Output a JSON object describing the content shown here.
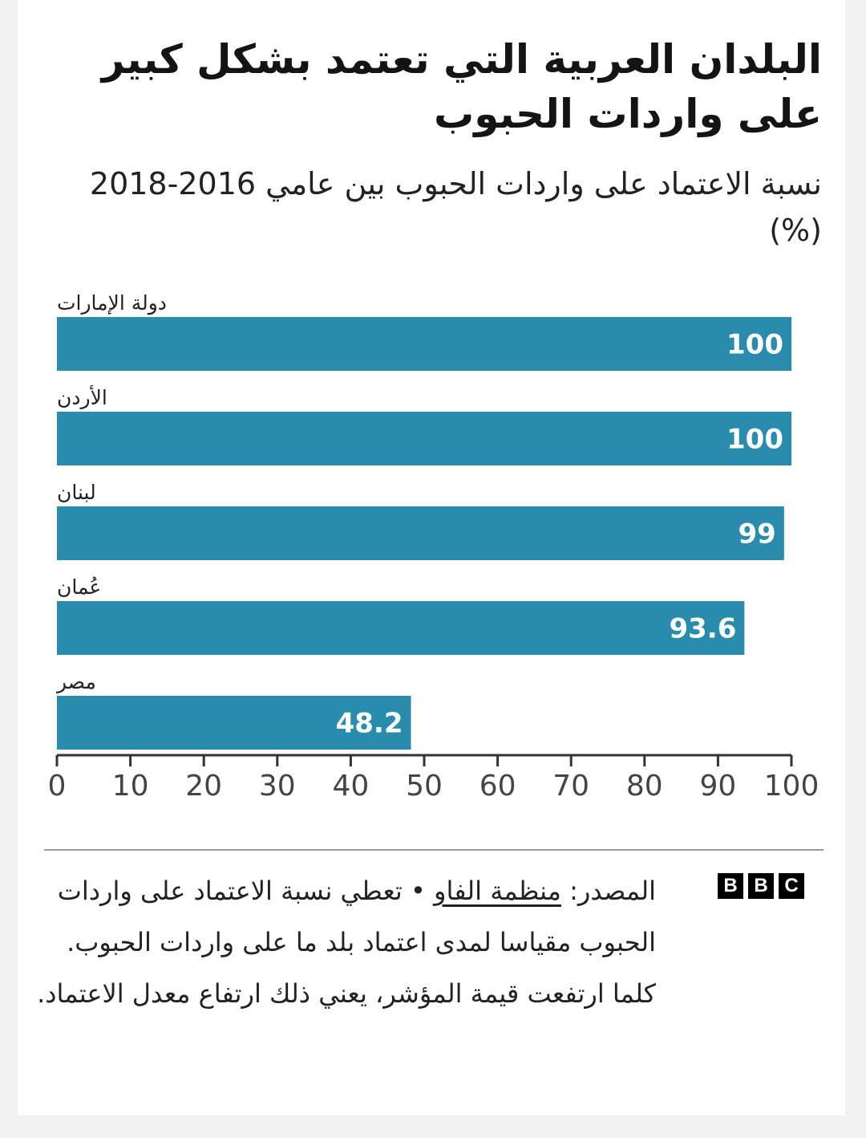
{
  "title": "البلدان العربية التي تعتمد بشكل كبير على واردات الحبوب",
  "subtitle": "نسبة الاعتماد على واردات الحبوب بين عامي 2016-2018 (%)",
  "footer": {
    "source_prefix": "المصدر: ",
    "source_link": "منظمة الفاو",
    "note": " • تعطي نسبة الاعتماد على واردات الحبوب مقياسا لمدى اعتماد بلد ما على واردات الحبوب. كلما ارتفعت قيمة المؤشر، يعني ذلك ارتفاع معدل الاعتماد.",
    "logo_letters": [
      "B",
      "B",
      "C"
    ]
  },
  "colors": {
    "bar": "#2a8cad",
    "axis": "#333333",
    "label": "#ffffff"
  },
  "chart_data": {
    "type": "bar",
    "orientation": "horizontal",
    "categories": [
      "دولة الإمارات",
      "الأردن",
      "لبنان",
      "عُمان",
      "مصر"
    ],
    "values": [
      100,
      100,
      99,
      93.6,
      48.2
    ],
    "data_labels": [
      "100",
      "100",
      "99",
      "93.6",
      "48.2"
    ],
    "xlim": [
      0,
      100
    ],
    "xticks": [
      "0",
      "10",
      "20",
      "30",
      "40",
      "50",
      "60",
      "70",
      "80",
      "90",
      "100"
    ],
    "grid": false
  }
}
